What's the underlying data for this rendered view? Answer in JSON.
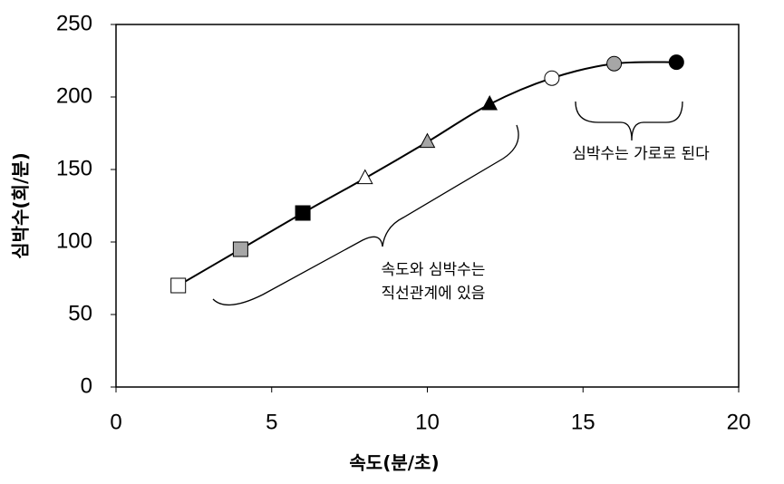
{
  "chart_data": {
    "type": "line",
    "x_label": "속도(분/초)",
    "y_label": "심박수(회/분)",
    "x": [
      2,
      4,
      6,
      8,
      10,
      12,
      14,
      16,
      18
    ],
    "values": [
      70,
      95,
      120,
      144,
      169,
      195,
      213,
      223,
      224
    ],
    "color": "#000000",
    "point_styles": [
      {
        "shape": "square",
        "fill": "#ffffff"
      },
      {
        "shape": "square",
        "fill": "#a6a6a6"
      },
      {
        "shape": "square",
        "fill": "#000000"
      },
      {
        "shape": "triangle",
        "fill": "#ffffff"
      },
      {
        "shape": "triangle",
        "fill": "#a6a6a6"
      },
      {
        "shape": "triangle",
        "fill": "#000000"
      },
      {
        "shape": "circle",
        "fill": "#ffffff"
      },
      {
        "shape": "circle",
        "fill": "#a6a6a6"
      },
      {
        "shape": "circle",
        "fill": "#000000"
      }
    ],
    "xlim": [
      0,
      20
    ],
    "xticks": [
      0,
      5,
      10,
      15,
      20
    ],
    "ylim": [
      0,
      250
    ],
    "yticks": [
      0,
      50,
      100,
      150,
      200,
      250
    ],
    "grid": false,
    "annotations": [
      {
        "lines": [
          "속도와 심박수는",
          "직선관계에 있음"
        ]
      },
      {
        "lines": [
          "심박수는 가로로 된다"
        ]
      }
    ]
  }
}
